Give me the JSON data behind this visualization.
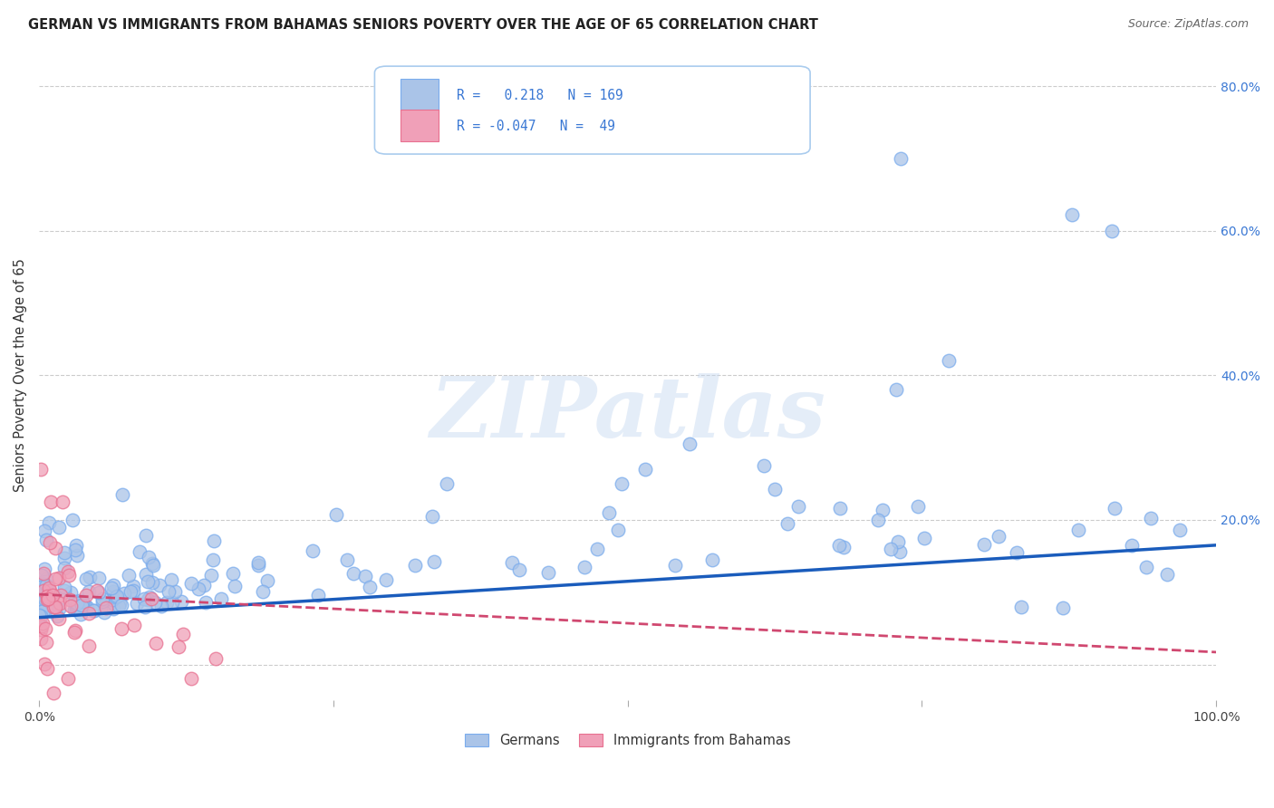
{
  "title": "GERMAN VS IMMIGRANTS FROM BAHAMAS SENIORS POVERTY OVER THE AGE OF 65 CORRELATION CHART",
  "source": "Source: ZipAtlas.com",
  "ylabel": "Seniors Poverty Over the Age of 65",
  "xlim": [
    0.0,
    1.0
  ],
  "ylim": [
    -0.05,
    0.85
  ],
  "yticks": [
    0.0,
    0.2,
    0.4,
    0.6,
    0.8
  ],
  "german_R": 0.218,
  "german_N": 169,
  "bahamas_R": -0.047,
  "bahamas_N": 49,
  "german_color_face": "#aac4e8",
  "german_color_edge": "#7aaced",
  "bahamas_color_face": "#f0a0b8",
  "bahamas_color_edge": "#e87090",
  "german_line_color": "#1a5cbc",
  "bahamas_line_color": "#d04870",
  "watermark_text": "ZIPatlas",
  "background_color": "#ffffff",
  "grid_color": "#cccccc",
  "right_ytick_color": "#3a78d4",
  "title_color": "#222222",
  "source_color": "#666666",
  "legend_text_color": "#3a78d4"
}
